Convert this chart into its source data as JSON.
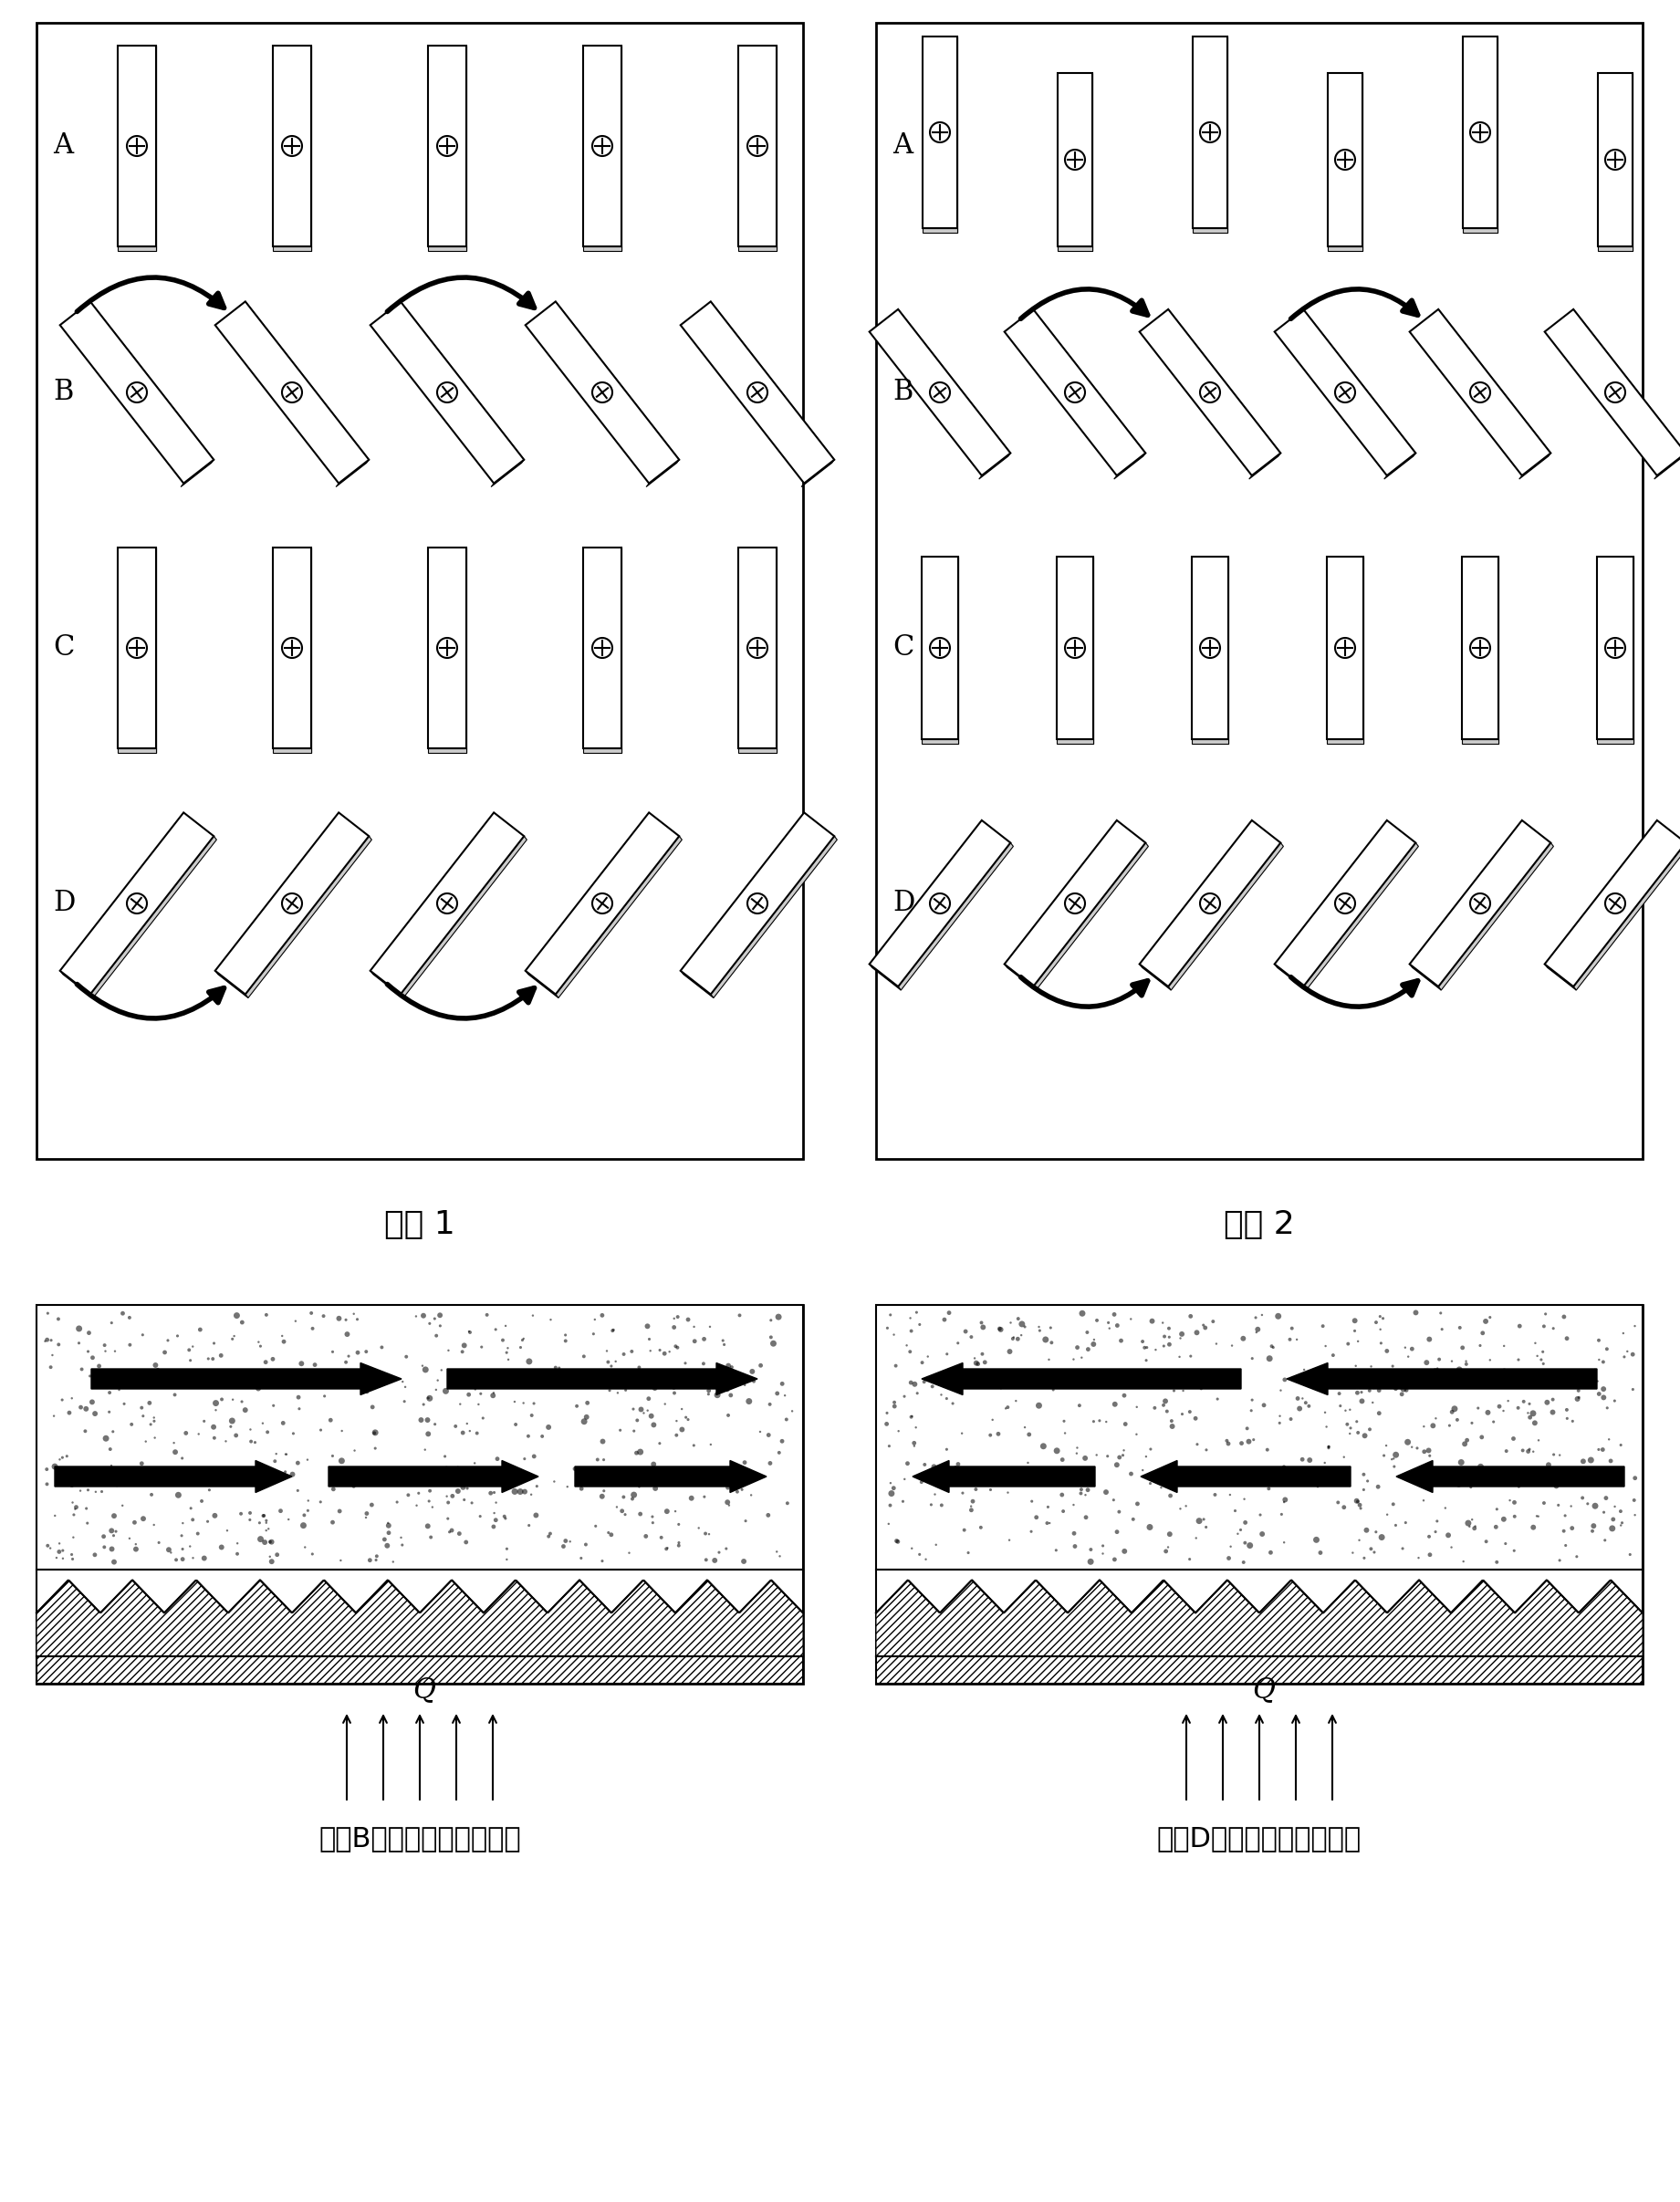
{
  "fig_width": 18.41,
  "fig_height": 24.13,
  "bg_color": "#ffffff",
  "scheme1_title": "方案 1",
  "scheme2_title": "方案 2",
  "label_B_bottom": "制板B状态时物料运动示意",
  "label_D_bottom": "制板D状态时物料运动示意",
  "Q_label": "Q"
}
